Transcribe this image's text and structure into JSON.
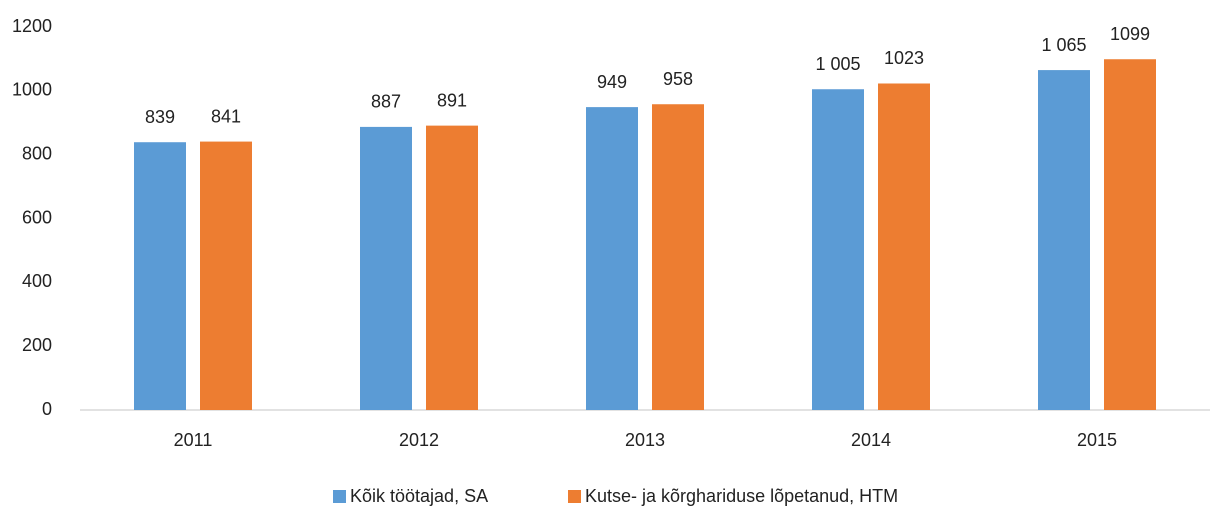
{
  "chart_data": {
    "type": "bar",
    "categories": [
      "2011",
      "2012",
      "2013",
      "2014",
      "2015"
    ],
    "series": [
      {
        "name": "Kõik töötajad, SA",
        "color": "#5b9bd5",
        "values": [
          839,
          887,
          949,
          1005,
          1065
        ],
        "value_labels": [
          "839",
          "887",
          "949",
          "1 005",
          "1 065"
        ]
      },
      {
        "name": "Kutse- ja kõrghariduse lõpetanud, HTM",
        "color": "#ed7d31",
        "values": [
          841,
          891,
          958,
          1023,
          1099
        ]
      }
    ],
    "ylim": [
      0,
      1200
    ],
    "yticks": [
      0,
      200,
      400,
      600,
      800,
      1000,
      1200
    ],
    "grid": false,
    "legend": "bottom"
  }
}
